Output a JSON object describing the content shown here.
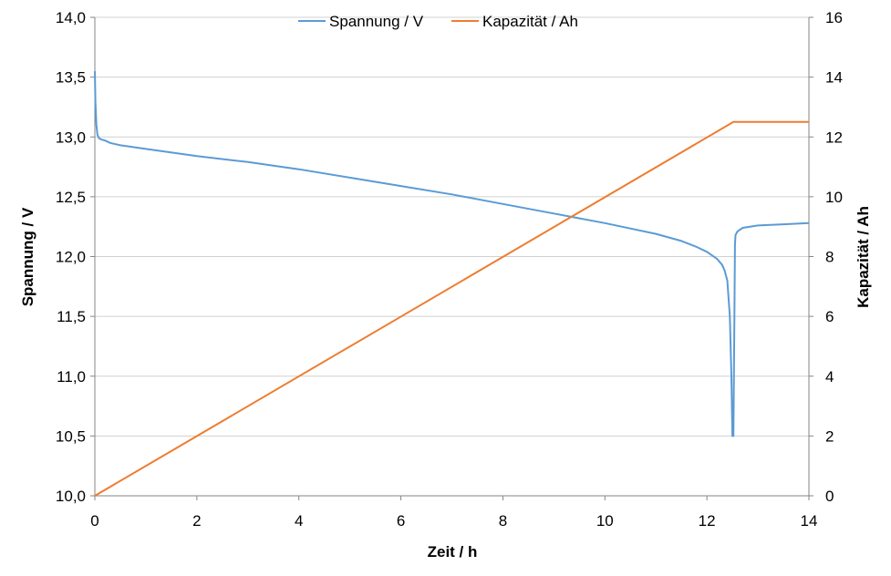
{
  "chart_data": {
    "type": "line",
    "x_label": "Zeit / h",
    "y_left_label": "Spannung / V",
    "y_right_label": "Kapazität / Ah",
    "x_ticks": [
      "0",
      "2",
      "4",
      "6",
      "8",
      "10",
      "12",
      "14"
    ],
    "y_left_ticks": [
      "10,0",
      "10,5",
      "11,0",
      "11,5",
      "12,0",
      "12,5",
      "13,0",
      "13,5",
      "14,0"
    ],
    "y_right_ticks": [
      "0",
      "2",
      "4",
      "6",
      "8",
      "10",
      "12",
      "14",
      "16"
    ],
    "xlim": [
      0,
      14
    ],
    "y_left_lim": [
      10.0,
      14.0
    ],
    "y_right_lim": [
      0,
      16
    ],
    "grid": true,
    "legend_position": "top",
    "series": [
      {
        "name": "Spannung / V",
        "axis": "left",
        "color": "#5b9bd5",
        "x": [
          0,
          0.01,
          0.03,
          0.05,
          0.08,
          0.12,
          0.2,
          0.3,
          0.5,
          1,
          2,
          3,
          4,
          5,
          6,
          7,
          8,
          9,
          10,
          11,
          11.5,
          11.8,
          12.0,
          12.2,
          12.3,
          12.35,
          12.4,
          12.45,
          12.48,
          12.5,
          12.52,
          12.54,
          12.55,
          12.56,
          12.6,
          12.7,
          13.0,
          13.5,
          14.0
        ],
        "y": [
          13.55,
          13.3,
          13.1,
          13.02,
          12.99,
          12.98,
          12.97,
          12.95,
          12.93,
          12.9,
          12.84,
          12.79,
          12.73,
          12.66,
          12.59,
          12.52,
          12.44,
          12.36,
          12.28,
          12.19,
          12.13,
          12.08,
          12.04,
          11.98,
          11.93,
          11.88,
          11.8,
          11.5,
          11.0,
          10.5,
          10.5,
          11.5,
          12.1,
          12.18,
          12.21,
          12.24,
          12.26,
          12.27,
          12.28
        ]
      },
      {
        "name": "Kapazität / Ah",
        "axis": "right",
        "color": "#ed7d31",
        "x": [
          0,
          12.52,
          14.0
        ],
        "y": [
          0,
          12.5,
          12.5
        ]
      }
    ]
  }
}
